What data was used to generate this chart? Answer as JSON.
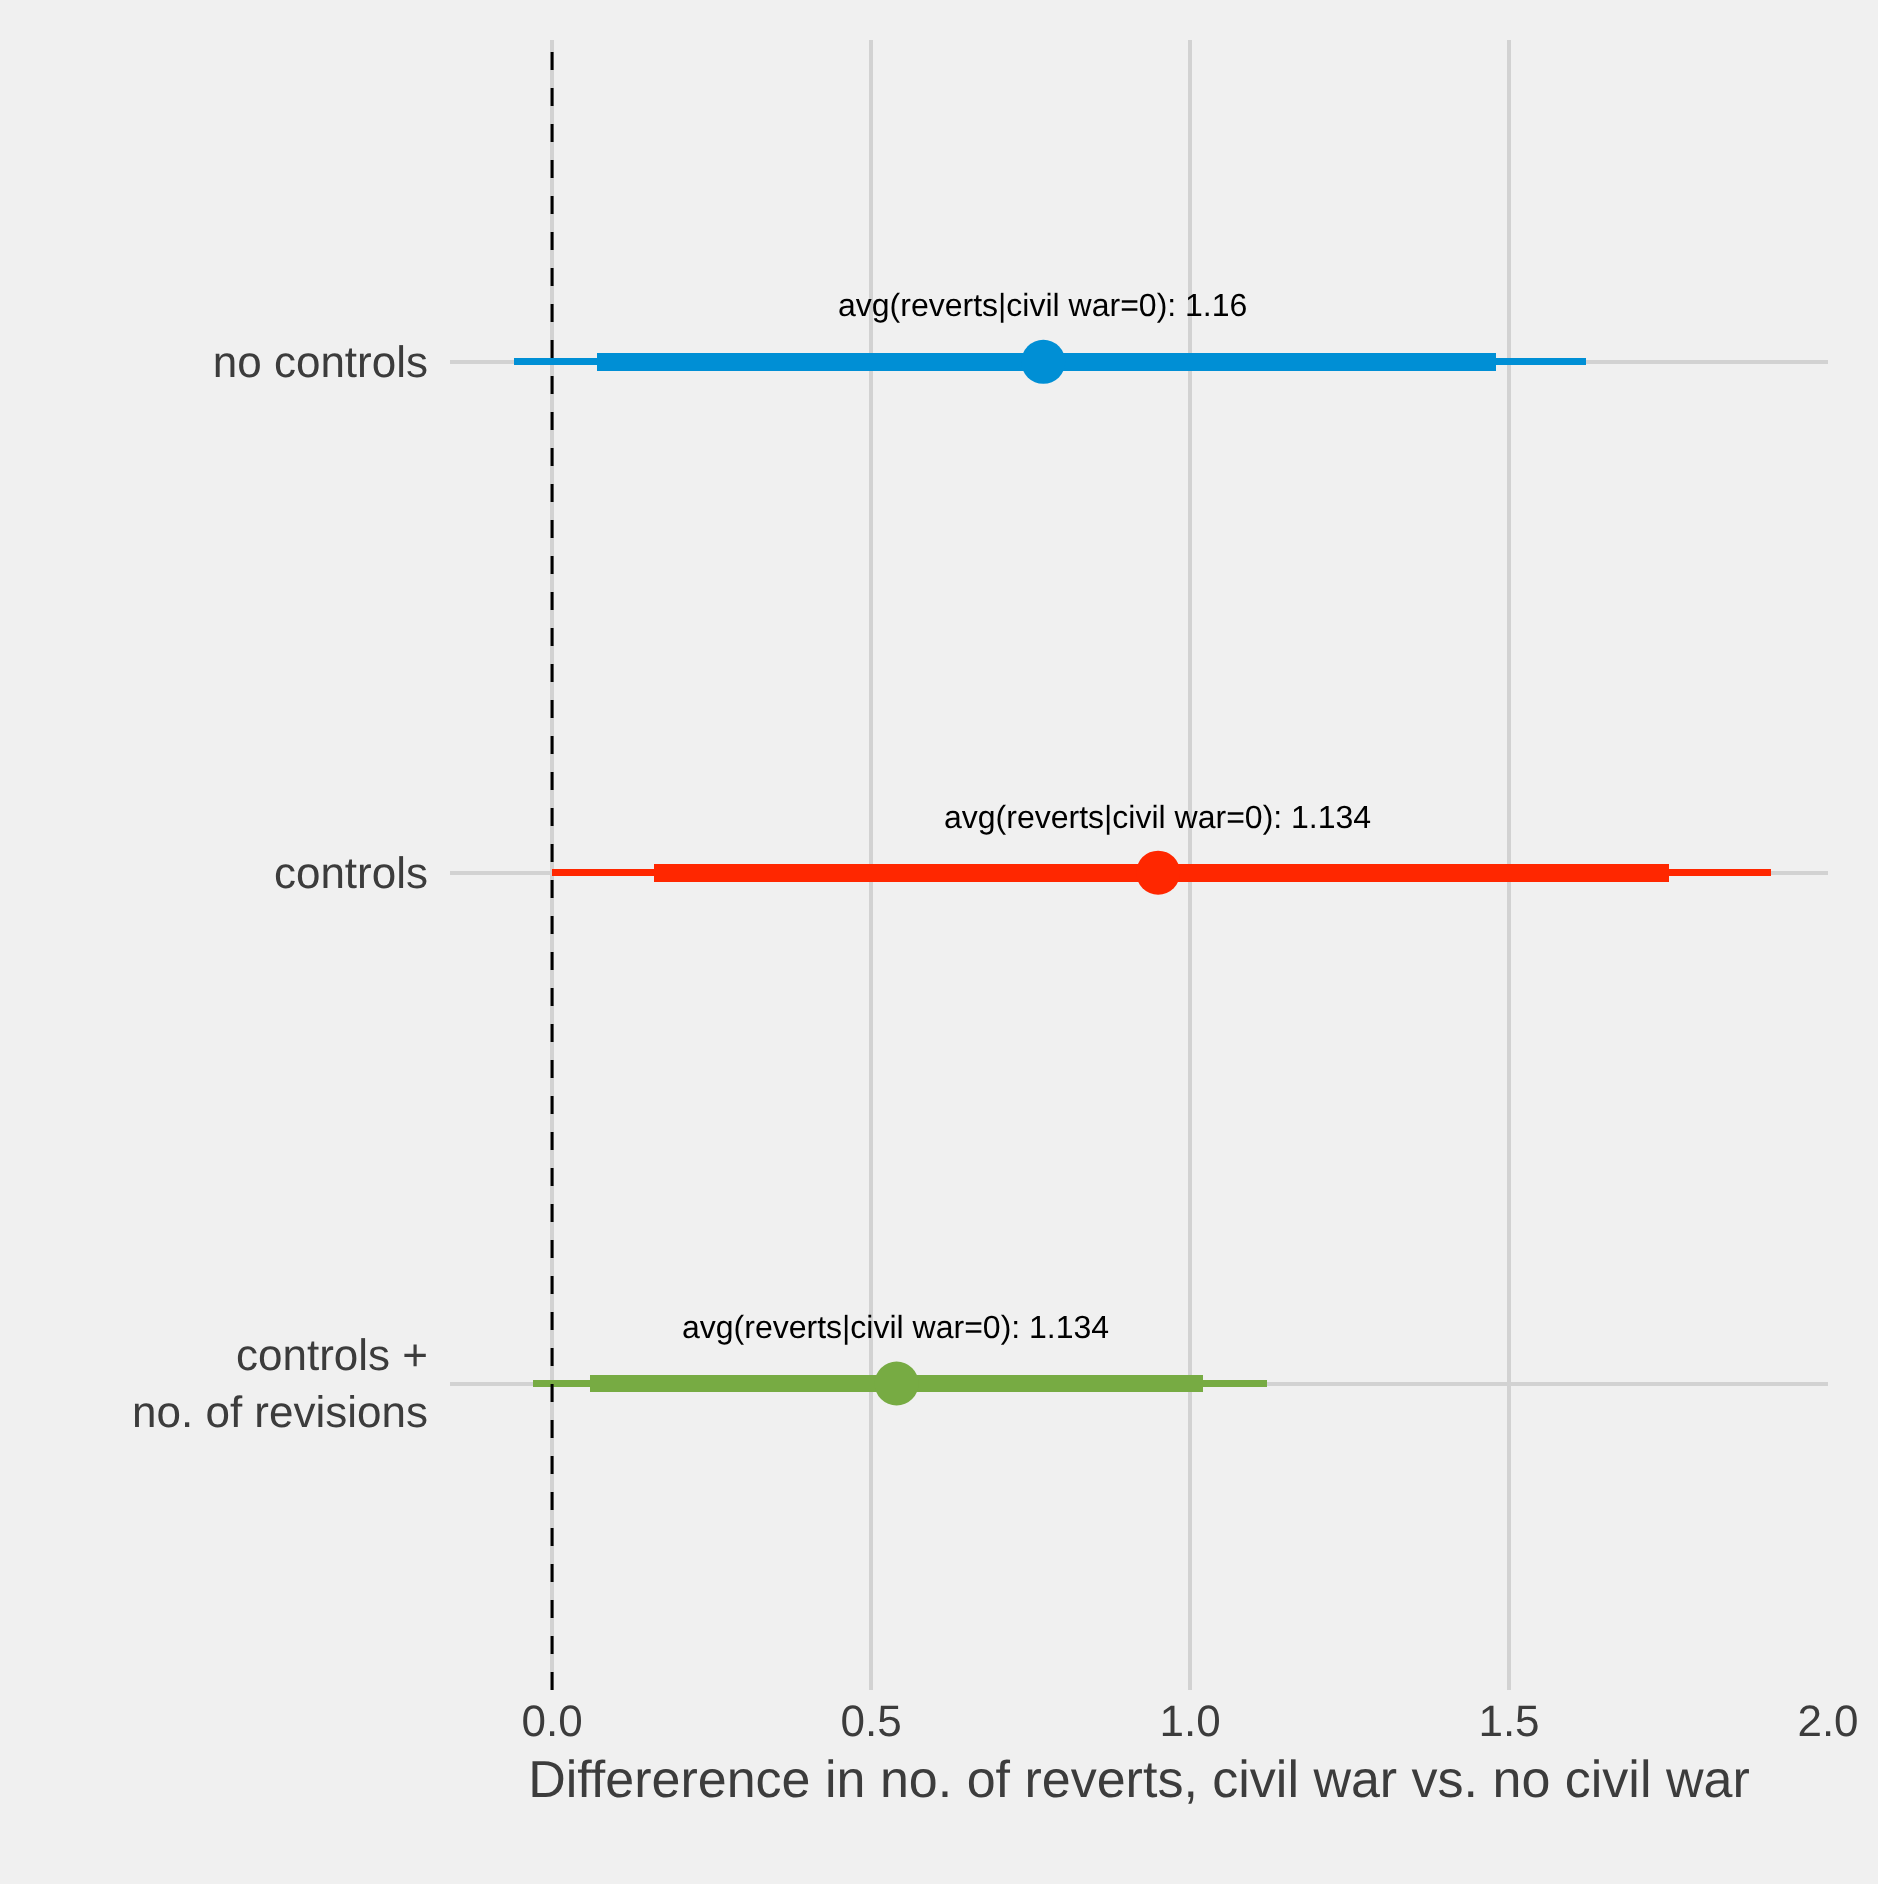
{
  "chart_data": {
    "type": "bar",
    "orientation": "horizontal",
    "xlabel": "Differerence in no. of reverts, civil war vs. no civil war",
    "categories": [
      "no controls",
      "controls",
      "controls +\nno. of revisions"
    ],
    "series": [
      {
        "base": [
          -0.06,
          0.0,
          -0.03
        ],
        "values": [
          1.68,
          1.91,
          1.15
        ],
        "colors": [
          "#008fd5",
          "#ff2700",
          "#77ab43"
        ]
      },
      {
        "base": [
          0.07,
          0.16,
          0.06
        ],
        "values": [
          1.41,
          1.59,
          0.96
        ],
        "colors": [
          "#008fd5",
          "#ff2700",
          "#77ab43"
        ]
      },
      {
        "type": "scatter",
        "values": [
          0.77,
          0.95,
          0.54
        ],
        "colors": [
          "#008fd5",
          "#ff2700",
          "#77ab43"
        ]
      }
    ],
    "marker": "circle",
    "xlim": [
      -0.16,
      2.0
    ],
    "xticks": [
      {
        "value": 0,
        "label": "0.0"
      },
      {
        "value": 0.5,
        "label": "0.5"
      },
      {
        "value": 1,
        "label": "1.0"
      },
      {
        "value": 1.5,
        "label": "1.5"
      },
      {
        "value": 2,
        "label": "2.0"
      }
    ],
    "ref_lines": [
      {
        "axis": "x",
        "value": 0,
        "color": "#000000",
        "line_style": "dashed"
      }
    ],
    "annotations": [
      {
        "text": "avg(reverts|civil war=0): 1.16",
        "x": 0.77,
        "y": "no controls"
      },
      {
        "text": "avg(reverts|civil war=0): 1.134",
        "x": 0.95,
        "y": "controls"
      },
      {
        "text": "avg(reverts|civil war=0): 1.134",
        "x": 0.54,
        "y": "controls +\nno. of revisions"
      }
    ],
    "grid": true
  }
}
